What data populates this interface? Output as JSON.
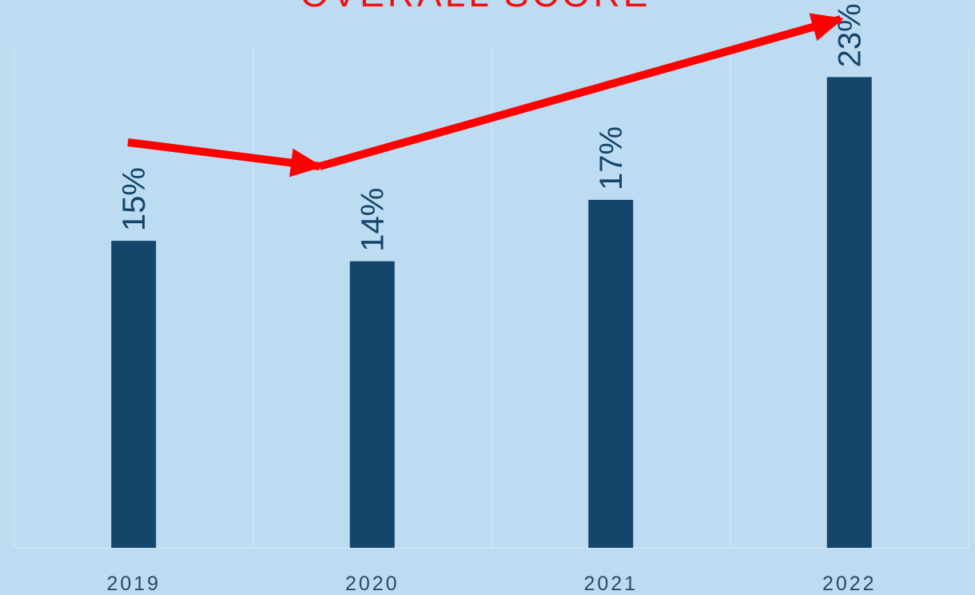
{
  "colors": {
    "background": "#bddcf2",
    "bar": "#14456b",
    "title": "#f01010",
    "arrow": "#ff0000",
    "grid": "#d4e3ef",
    "label": "#14456b",
    "tick": "#2b4a66"
  },
  "chart_data": {
    "type": "bar",
    "title": "OVERALL SCORE",
    "categories": [
      "2019",
      "2020",
      "2021",
      "2022"
    ],
    "values": [
      15,
      14,
      17,
      23
    ],
    "value_labels": [
      "15%",
      "14%",
      "17%",
      "23%"
    ],
    "xlabel": "",
    "ylabel": "",
    "ylim": [
      0,
      24.5
    ],
    "grid": "vertical category separators",
    "legend": "none",
    "annotations": [
      {
        "type": "arrow",
        "description": "red trend arrow 2019 → 2020 (down)"
      },
      {
        "type": "arrow",
        "description": "red trend arrow 2020 → 2022 (up)"
      }
    ]
  }
}
